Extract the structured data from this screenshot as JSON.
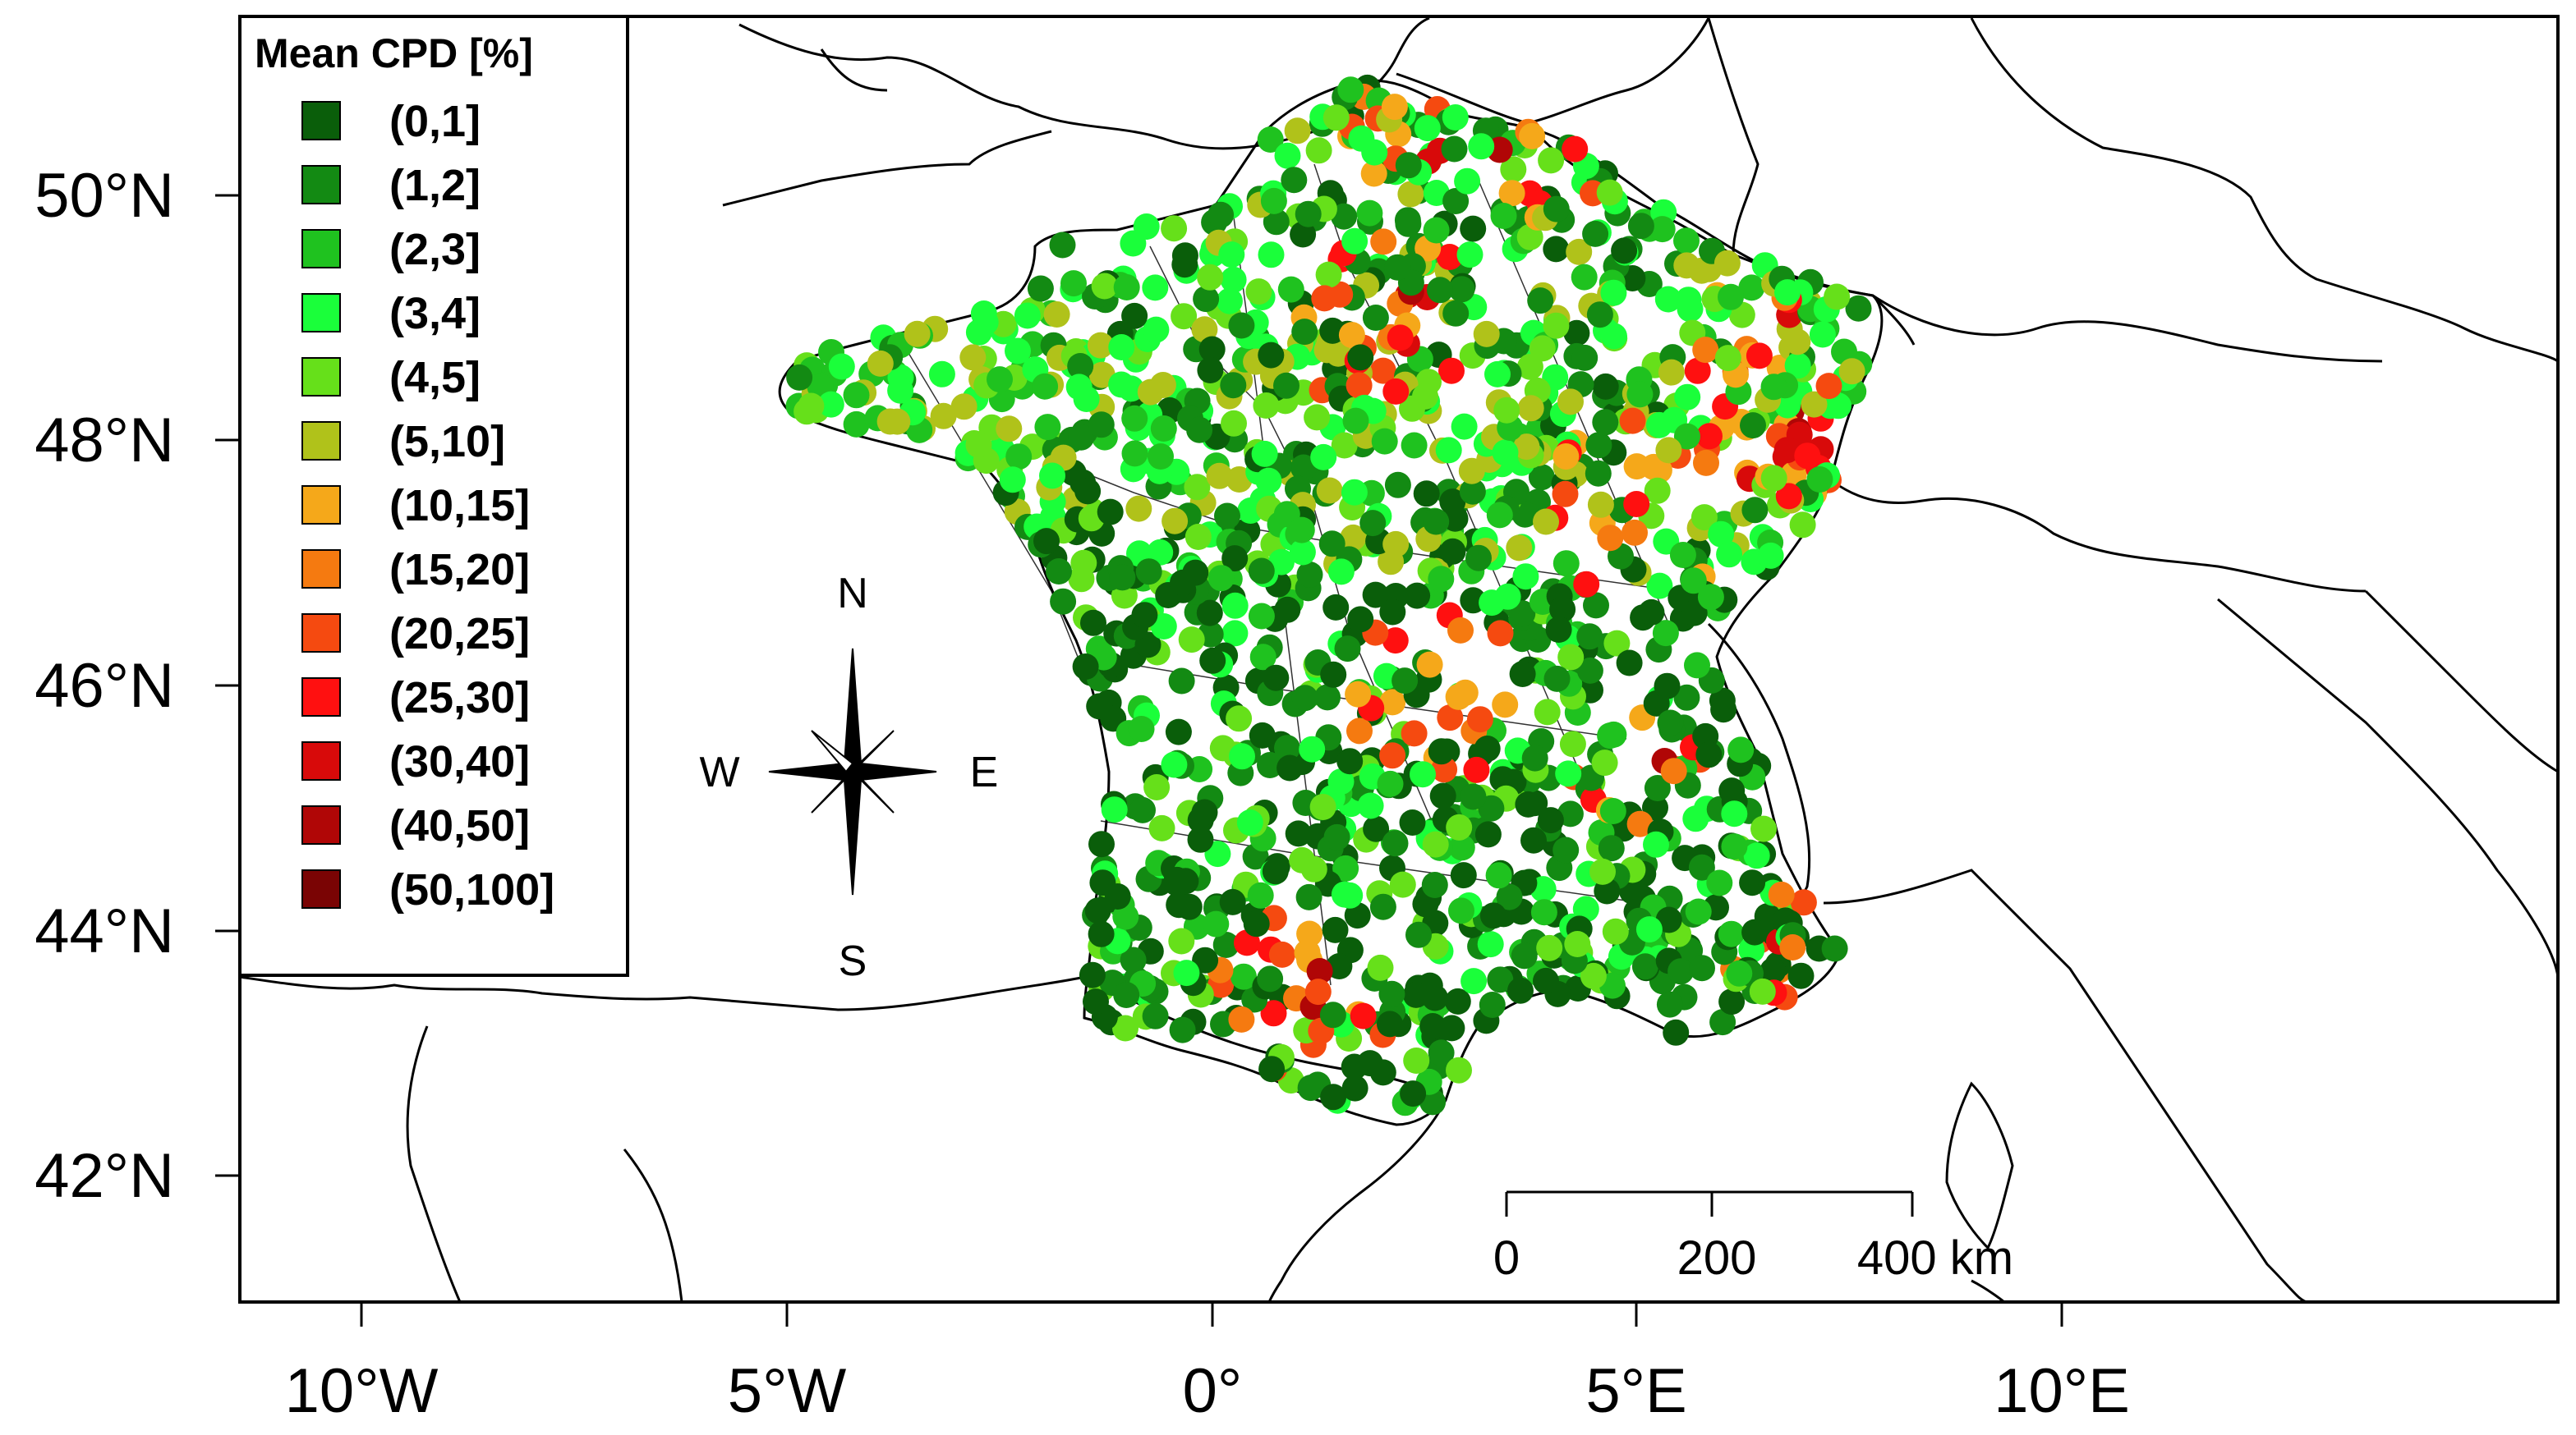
{
  "legend": {
    "title": "Mean CPD [%]",
    "classes": [
      {
        "label": "(0,1]",
        "color": "#0a5e0a"
      },
      {
        "label": "(1,2]",
        "color": "#138a13"
      },
      {
        "label": "(2,3]",
        "color": "#1fc21f"
      },
      {
        "label": "(3,4]",
        "color": "#1aff3a"
      },
      {
        "label": "(4,5]",
        "color": "#66e01a"
      },
      {
        "label": "(5,10]",
        "color": "#b0c21a"
      },
      {
        "label": "(10,15]",
        "color": "#f5a81a"
      },
      {
        "label": "(15,20]",
        "color": "#f57a10"
      },
      {
        "label": "(20,25]",
        "color": "#f54a10"
      },
      {
        "label": "(25,30]",
        "color": "#ff1010"
      },
      {
        "label": "(30,40]",
        "color": "#d80a0a"
      },
      {
        "label": "(40,50]",
        "color": "#b00606"
      },
      {
        "label": "(50,100]",
        "color": "#7a0404"
      }
    ]
  },
  "axes": {
    "lat_ticks": [
      "50°N",
      "48°N",
      "46°N",
      "44°N",
      "42°N"
    ],
    "lon_ticks": [
      "10°W",
      "5°W",
      "0°",
      "5°E",
      "10°E"
    ]
  },
  "compass": {
    "n": "N",
    "s": "S",
    "e": "E",
    "w": "W"
  },
  "scalebar": {
    "ticks": [
      "0",
      "200",
      "400 km"
    ]
  },
  "points_summary": {
    "note_colors": "dense stations across France colored by CPD class"
  }
}
